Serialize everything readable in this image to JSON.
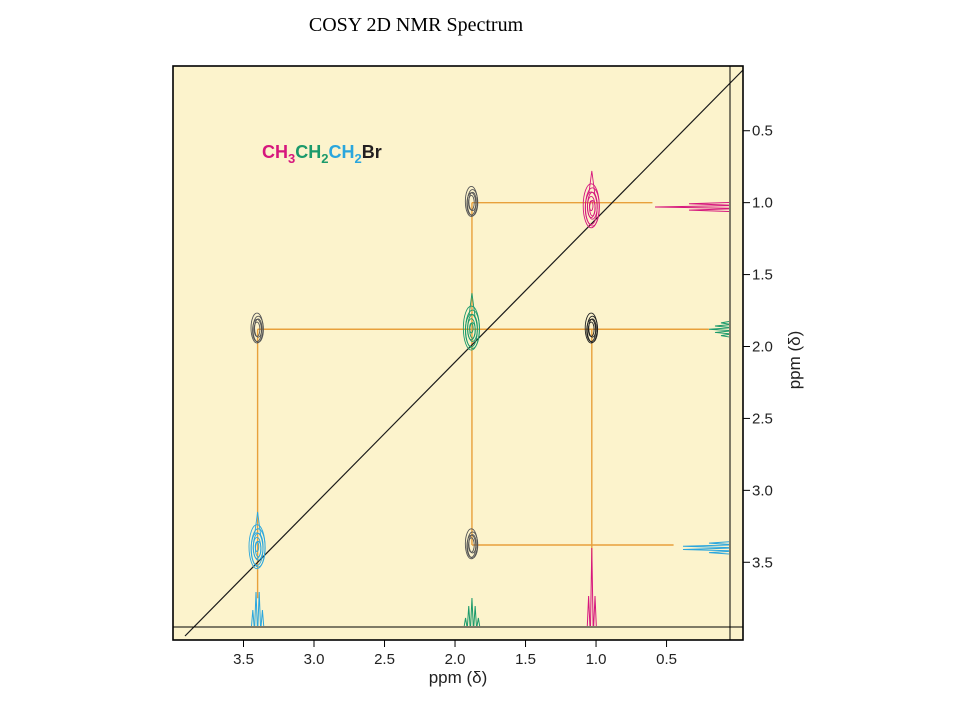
{
  "page": {
    "title": "COSY 2D NMR Spectrum"
  },
  "chart_data": {
    "type": "contour",
    "title": "COSY 2D NMR Spectrum",
    "xlabel": "ppm (δ)",
    "ylabel": "ppm (δ)",
    "xlim": [
      4.0,
      0.05
    ],
    "ylim": [
      0.05,
      3.95
    ],
    "x_ticks": [
      3.5,
      3.0,
      2.5,
      2.0,
      1.5,
      1.0,
      0.5
    ],
    "y_ticks": [
      0.5,
      1.0,
      1.5,
      2.0,
      2.5,
      3.0,
      3.5
    ],
    "tick_labels": [
      "3.5",
      "3.0",
      "2.5",
      "2.0",
      "1.5",
      "1.0",
      "0.5"
    ],
    "molecule": {
      "parts": [
        {
          "text": "CH",
          "color": "#d6177d"
        },
        {
          "text": "3",
          "color": "#d6177d",
          "sub": true
        },
        {
          "text": "CH",
          "color": "#1b9a6b"
        },
        {
          "text": "2",
          "color": "#1b9a6b",
          "sub": true
        },
        {
          "text": "CH",
          "color": "#2aa6dd"
        },
        {
          "text": "2",
          "color": "#2aa6dd",
          "sub": true
        },
        {
          "text": "Br",
          "color": "#231f20"
        }
      ]
    },
    "signals": [
      {
        "group": "CH3",
        "shift": 1.03,
        "color": "#d6177d"
      },
      {
        "group": "CH2",
        "shift": 1.88,
        "color": "#1b9a6b"
      },
      {
        "group": "CH2Br",
        "shift": 3.4,
        "color": "#2aa6dd"
      }
    ],
    "peaks": [
      {
        "x": 1.03,
        "y": 1.03,
        "kind": "diagonal",
        "color": "#d6177d"
      },
      {
        "x": 1.88,
        "y": 1.88,
        "kind": "diagonal",
        "color": "#1b9a6b"
      },
      {
        "x": 3.4,
        "y": 3.4,
        "kind": "diagonal",
        "color": "#2aa6dd"
      },
      {
        "x": 1.88,
        "y": 1.0,
        "kind": "cross",
        "color": "#555555"
      },
      {
        "x": 3.4,
        "y": 1.88,
        "kind": "cross",
        "color": "#555555"
      },
      {
        "x": 1.03,
        "y": 1.88,
        "kind": "cross",
        "color": "#222222"
      },
      {
        "x": 1.88,
        "y": 3.38,
        "kind": "cross",
        "color": "#555555"
      }
    ],
    "correlation_lines": [
      {
        "from": [
          1.88,
          1.0
        ],
        "to": [
          0.6,
          1.0
        ]
      },
      {
        "from": [
          3.4,
          1.88
        ],
        "to": [
          0.2,
          1.88
        ]
      },
      {
        "from": [
          1.88,
          3.38
        ],
        "to": [
          0.45,
          3.38
        ]
      },
      {
        "from": [
          1.88,
          1.0
        ],
        "to": [
          1.88,
          3.38
        ]
      },
      {
        "from": [
          3.4,
          1.88
        ],
        "to": [
          3.4,
          3.75
        ]
      },
      {
        "from": [
          1.03,
          1.88
        ],
        "to": [
          1.03,
          3.55
        ]
      }
    ],
    "colors": {
      "background": "#fcf3cc",
      "line": "#e8a03b",
      "frame": "#000000"
    }
  }
}
